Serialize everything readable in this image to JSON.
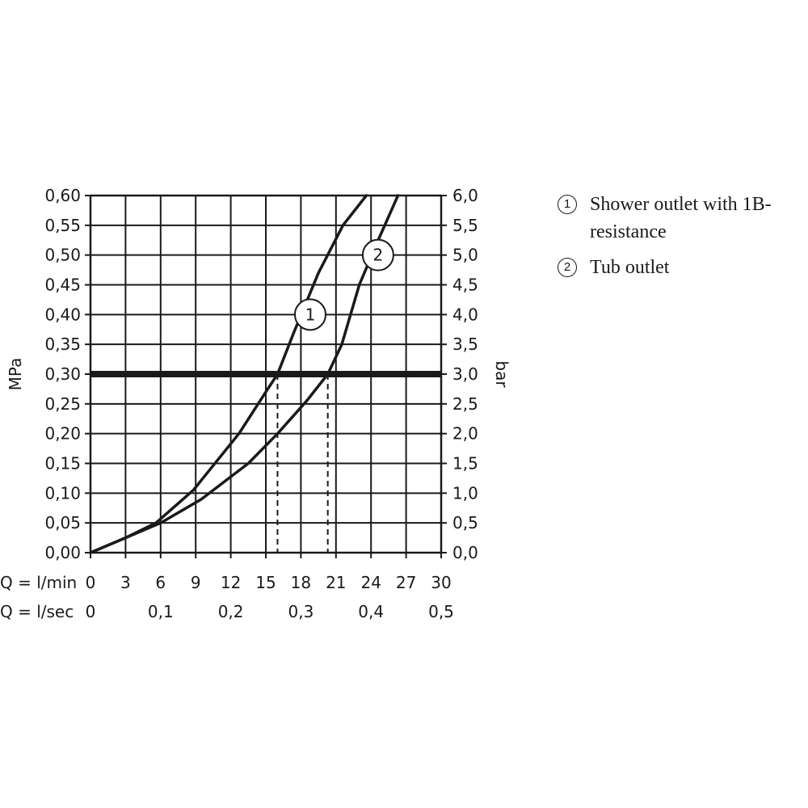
{
  "chart_data": {
    "type": "line",
    "xlabels": {
      "primary": "Q = l/min",
      "secondary": "Q = l/sec"
    },
    "ylabel_left": "MPa",
    "ylabel_right": "bar",
    "xlim": [
      0,
      30
    ],
    "ylim": [
      0,
      0.6
    ],
    "x_ticks": [
      "0",
      "3",
      "6",
      "9",
      "12",
      "15",
      "18",
      "21",
      "24",
      "27",
      "30"
    ],
    "x_ticks_sec": [
      {
        "x": 0,
        "label": "0"
      },
      {
        "x": 6,
        "label": "0,1"
      },
      {
        "x": 12,
        "label": "0,2"
      },
      {
        "x": 18,
        "label": "0,3"
      },
      {
        "x": 24,
        "label": "0,4"
      },
      {
        "x": 30,
        "label": "0,5"
      }
    ],
    "y_ticks_left": [
      "0,00",
      "0,05",
      "0,10",
      "0,15",
      "0,20",
      "0,25",
      "0,30",
      "0,35",
      "0,40",
      "0,45",
      "0,50",
      "0,55",
      "0,60"
    ],
    "y_ticks_right": [
      "0,0",
      "0,5",
      "1,0",
      "1,5",
      "2,0",
      "2,5",
      "3,0",
      "3,5",
      "4,0",
      "4,5",
      "5,0",
      "5,5",
      "6,0"
    ],
    "grid": true,
    "reference_line": {
      "y": 0.3
    },
    "series": [
      {
        "marker": "1",
        "x": [
          0,
          3,
          5.6,
          8.8,
          12.7,
          15,
          16,
          17.4,
          19.5,
          21.6,
          23.6
        ],
        "y": [
          0,
          0.025,
          0.05,
          0.105,
          0.2,
          0.27,
          0.3,
          0.37,
          0.47,
          0.55,
          0.6
        ],
        "label_at": {
          "x": 18.8,
          "y": 0.4
        },
        "drop_x": 16
      },
      {
        "marker": "2",
        "x": [
          0,
          3,
          6,
          9.5,
          13.5,
          16,
          18.5,
          20.3,
          21.5,
          23,
          24.5,
          26.3
        ],
        "y": [
          0,
          0.025,
          0.05,
          0.09,
          0.15,
          0.2,
          0.255,
          0.3,
          0.35,
          0.45,
          0.52,
          0.6
        ],
        "label_at": {
          "x": 24.6,
          "y": 0.5
        },
        "drop_x": 20.3
      }
    ]
  },
  "legend": [
    {
      "marker": "1",
      "text": "Shower outlet with 1B-resistance"
    },
    {
      "marker": "2",
      "text": "Tub outlet"
    }
  ]
}
